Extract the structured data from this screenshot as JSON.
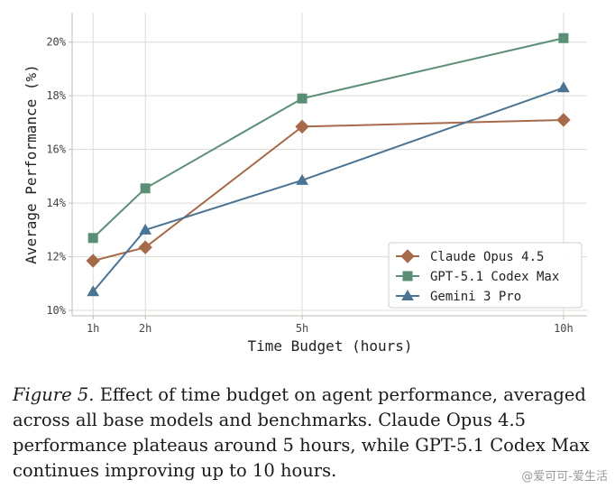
{
  "chart_data": {
    "type": "line",
    "title": "",
    "xlabel": "Time Budget (hours)",
    "ylabel": "Average Performance (%)",
    "x": [
      1,
      2,
      5,
      10
    ],
    "x_tick_labels": [
      "1h",
      "2h",
      "5h",
      "10h"
    ],
    "y_ticks": [
      10,
      12,
      14,
      16,
      18,
      20
    ],
    "y_tick_labels": [
      "10%",
      "12%",
      "14%",
      "16%",
      "18%",
      "20%"
    ],
    "xlim": [
      0.6,
      10.45
    ],
    "ylim": [
      9.8,
      21.1
    ],
    "grid": true,
    "legend_position": "lower-right",
    "series": [
      {
        "name": "Claude Opus 4.5",
        "values": [
          11.85,
          12.35,
          16.85,
          17.1
        ],
        "color": "#a66a4a",
        "marker": "diamond"
      },
      {
        "name": "GPT-5.1 Codex Max",
        "values": [
          12.7,
          14.55,
          17.9,
          20.15
        ],
        "color": "#5a8f76",
        "marker": "square"
      },
      {
        "name": "Gemini 3 Pro",
        "values": [
          10.7,
          13.0,
          14.85,
          18.3
        ],
        "color": "#4b7393",
        "marker": "triangle"
      }
    ]
  },
  "caption": {
    "figure_label": "Figure 5.",
    "text": "Effect of time budget on agent performance, averaged across all base models and benchmarks. Claude Opus 4.5 performance plateaus around 5 hours, while GPT-5.1 Codex Max continues improving up to 10 hours."
  },
  "watermark": "@爱可可-爱生活"
}
